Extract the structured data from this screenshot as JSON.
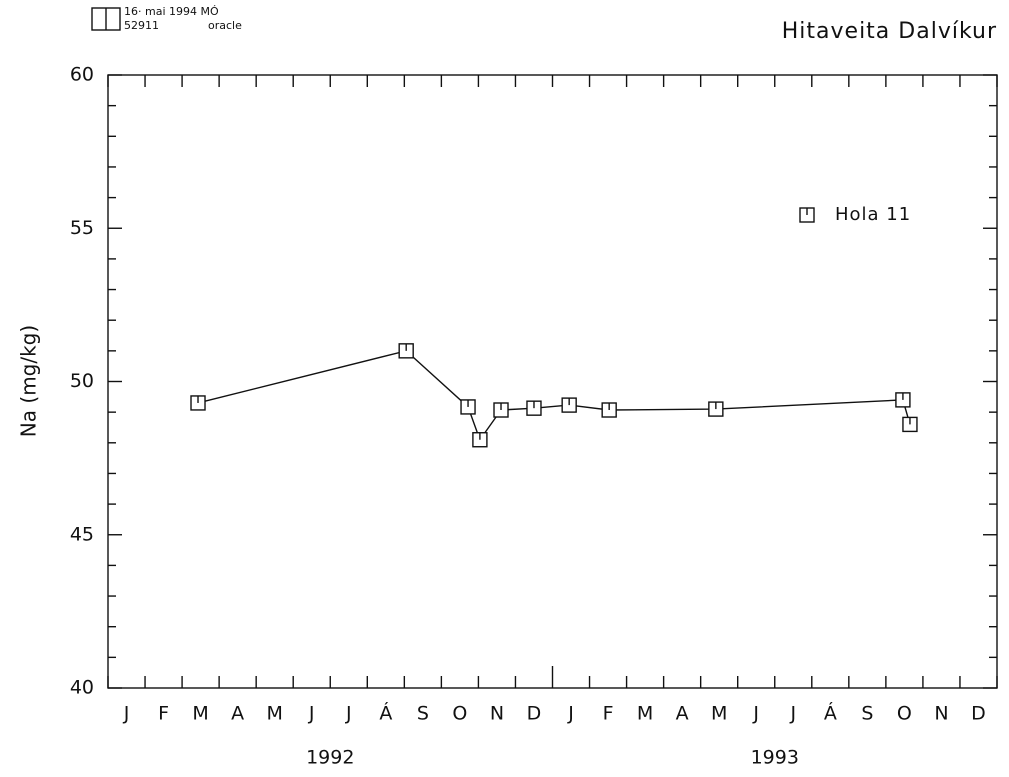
{
  "header": {
    "code": "16· mai 1994 MÓ",
    "number": "52911",
    "source": "oracle"
  },
  "chart_data": {
    "type": "line",
    "title": "Hitaveita Dalvíkur",
    "y_label": "Na  (mg/kg)",
    "categories": [
      "J",
      "F",
      "M",
      "A",
      "M",
      "J",
      "J",
      "Á",
      "S",
      "O",
      "N",
      "D",
      "J",
      "F",
      "M",
      "A",
      "M",
      "J",
      "J",
      "Á",
      "S",
      "O",
      "N",
      "D"
    ],
    "years": [
      "1992",
      "1993"
    ],
    "xlim": [
      0,
      24
    ],
    "xticks": [
      0,
      1,
      2,
      3,
      4,
      5,
      6,
      7,
      8,
      9,
      10,
      11,
      12,
      13,
      14,
      15,
      16,
      17,
      18,
      19,
      20,
      21,
      22,
      23,
      24
    ],
    "ylim": [
      40,
      60
    ],
    "yticks": [
      40,
      45,
      50,
      55,
      60
    ],
    "yticks_minor": [
      41,
      42,
      43,
      44,
      46,
      47,
      48,
      49,
      51,
      52,
      53,
      54,
      56,
      57,
      58,
      59
    ],
    "legend": "upper right",
    "series": [
      {
        "name": "Hola 11",
        "color": "#111111",
        "x": [
          2.43,
          8.05,
          9.72,
          10.04,
          10.61,
          11.5,
          12.45,
          13.53,
          16.41,
          21.46,
          21.65
        ],
        "values": [
          49.3,
          51.0,
          49.17,
          48.1,
          49.07,
          49.13,
          49.23,
          49.07,
          49.1,
          49.4,
          48.6
        ]
      }
    ]
  }
}
